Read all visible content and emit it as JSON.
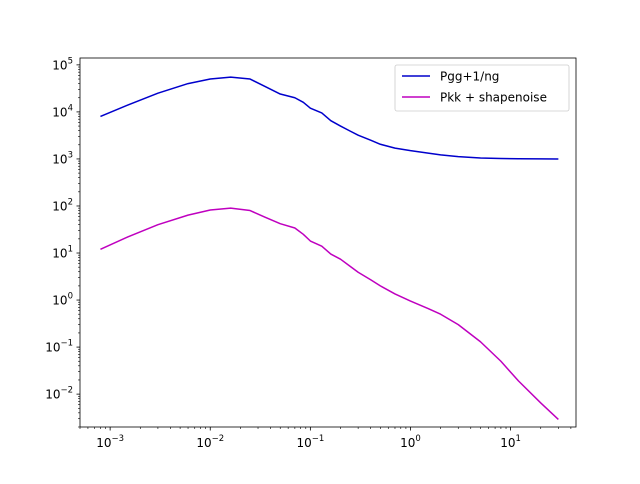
{
  "chart_data": {
    "type": "line",
    "title": "",
    "xlabel": "",
    "ylabel": "",
    "xscale": "log",
    "yscale": "log",
    "xlim": [
      0.0005,
      45
    ],
    "ylim": [
      0.002,
      140000
    ],
    "grid": false,
    "legend_position": "upper right",
    "x_ticks": [
      {
        "value": 0.001,
        "base": "10",
        "exp": "−3"
      },
      {
        "value": 0.01,
        "base": "10",
        "exp": "−2"
      },
      {
        "value": 0.1,
        "base": "10",
        "exp": "−1"
      },
      {
        "value": 1,
        "base": "10",
        "exp": "0"
      },
      {
        "value": 10,
        "base": "10",
        "exp": "1"
      }
    ],
    "y_ticks": [
      {
        "value": 0.01,
        "base": "10",
        "exp": "−2"
      },
      {
        "value": 0.1,
        "base": "10",
        "exp": "−1"
      },
      {
        "value": 1,
        "base": "10",
        "exp": "0"
      },
      {
        "value": 10,
        "base": "10",
        "exp": "1"
      },
      {
        "value": 100,
        "base": "10",
        "exp": "2"
      },
      {
        "value": 1000,
        "base": "10",
        "exp": "3"
      },
      {
        "value": 10000,
        "base": "10",
        "exp": "4"
      },
      {
        "value": 100000,
        "base": "10",
        "exp": "5"
      }
    ],
    "series": [
      {
        "name": "Pgg+1/ng",
        "color": "#0000cc",
        "x": [
          0.0008,
          0.0015,
          0.003,
          0.006,
          0.01,
          0.016,
          0.025,
          0.035,
          0.05,
          0.07,
          0.085,
          0.1,
          0.13,
          0.16,
          0.2,
          0.25,
          0.3,
          0.4,
          0.5,
          0.7,
          1,
          1.5,
          2,
          3,
          5,
          8,
          12,
          20,
          30
        ],
        "y": [
          8000,
          14000,
          25000,
          40000,
          50000,
          55000,
          50000,
          35000,
          24000,
          20000,
          16000,
          12000,
          9500,
          6500,
          5000,
          3900,
          3200,
          2500,
          2050,
          1700,
          1500,
          1330,
          1220,
          1120,
          1050,
          1020,
          1010,
          1003,
          1000
        ]
      },
      {
        "name": "Pkk + shapenoise",
        "color": "#bf00bf",
        "x": [
          0.0008,
          0.0015,
          0.003,
          0.006,
          0.01,
          0.016,
          0.025,
          0.035,
          0.05,
          0.07,
          0.085,
          0.1,
          0.13,
          0.16,
          0.2,
          0.25,
          0.3,
          0.4,
          0.5,
          0.7,
          1,
          1.5,
          2,
          3,
          5,
          8,
          12,
          20,
          30
        ],
        "y": [
          12,
          22,
          40,
          64,
          82,
          90,
          80,
          58,
          42,
          34,
          25,
          18,
          14,
          9.5,
          7.4,
          5.2,
          3.9,
          2.7,
          2.0,
          1.35,
          0.95,
          0.66,
          0.5,
          0.3,
          0.13,
          0.05,
          0.019,
          0.0065,
          0.0029
        ]
      }
    ]
  }
}
